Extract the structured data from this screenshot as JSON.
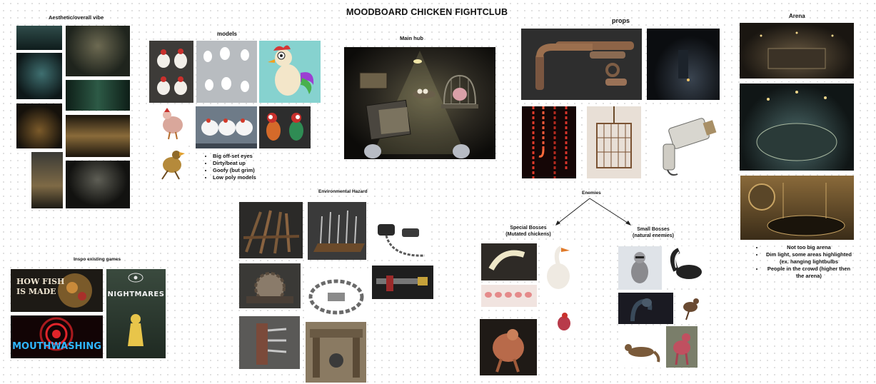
{
  "board": {
    "title": "MOODBOARD CHICKEN FIGHTCLUB"
  },
  "sections": {
    "aesthetic": {
      "label": "Aesthetic/overall vibe"
    },
    "models": {
      "label": "models",
      "notes": [
        "Big off-set eyes",
        "Dirty/beat up",
        "Goofy (but grim)",
        "Low poly models"
      ]
    },
    "main_hub": {
      "label": "Main hub"
    },
    "props": {
      "label": "props"
    },
    "arena": {
      "label": "Arena",
      "notes": [
        "Not too big arena",
        "Dim light, some areas highlighted (ex. hanging lightbulbs",
        "People in the crowd (higher then the arena)"
      ]
    },
    "environmental_hazard": {
      "label": "Environmental Hazard"
    },
    "enemies": {
      "label": "Enemies",
      "special_bosses": [
        "Special Bosses",
        "(Mutated chickens)"
      ],
      "small_bosses": [
        "Small Bosses",
        "(natural enemies)"
      ]
    },
    "inspo": {
      "label": "Inspo existing games",
      "games": [
        "HOW FISH",
        "IS MADE",
        "NIGHTMARES",
        "MOUTHWASHING"
      ]
    }
  },
  "colors": {
    "background": "#ffffff",
    "dots": "#d6d6d6",
    "text": "#111111",
    "mouthwashing_red": "#e0242a",
    "dark_photo": "#1b1a17"
  }
}
